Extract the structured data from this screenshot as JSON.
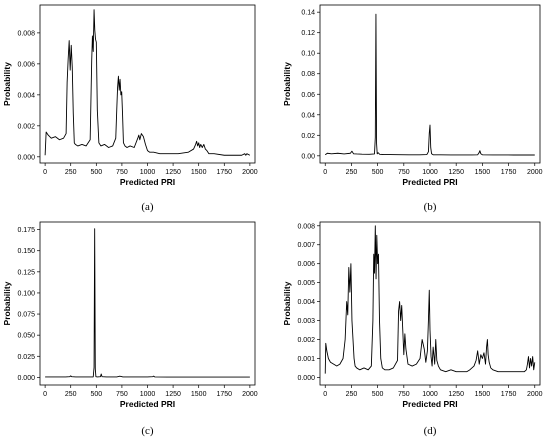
{
  "chart_data": [
    {
      "type": "line",
      "caption": "(a)",
      "xlabel": "Predicted PRI",
      "ylabel": "Probability",
      "xlim": [
        -50,
        2050
      ],
      "ylim": [
        -0.0004,
        0.0098
      ],
      "xticks": [
        0,
        250,
        500,
        750,
        1000,
        1250,
        1500,
        1750,
        2000
      ],
      "yticks": [
        0.0,
        0.002,
        0.004,
        0.006,
        0.008
      ],
      "ytick_labels": [
        "0.000",
        "0.002",
        "0.004",
        "0.006",
        "0.008"
      ],
      "grid": false,
      "series": [
        {
          "x": [
            0,
            10,
            30,
            60,
            100,
            140,
            180,
            205,
            215,
            225,
            235,
            245,
            255,
            265,
            275,
            285,
            295,
            320,
            360,
            400,
            440,
            455,
            462,
            470,
            478,
            485,
            492,
            500,
            510,
            525,
            545,
            580,
            620,
            660,
            690,
            700,
            708,
            716,
            724,
            732,
            740,
            748,
            756,
            765,
            780,
            800,
            830,
            870,
            905,
            915,
            925,
            940,
            960,
            980,
            1000,
            1020,
            1060,
            1120,
            1200,
            1300,
            1400,
            1450,
            1470,
            1480,
            1490,
            1500,
            1510,
            1520,
            1535,
            1550,
            1565,
            1580,
            1600,
            1650,
            1750,
            1850,
            1920,
            1950,
            1960,
            1970,
            2000
          ],
          "y": [
            0.0001,
            0.0016,
            0.0014,
            0.0012,
            0.0013,
            0.0011,
            0.0012,
            0.0015,
            0.0048,
            0.0063,
            0.0075,
            0.0056,
            0.0072,
            0.0058,
            0.0028,
            0.0009,
            0.0008,
            0.0007,
            0.0008,
            0.0007,
            0.0011,
            0.0062,
            0.0078,
            0.0068,
            0.0095,
            0.0082,
            0.0076,
            0.0074,
            0.003,
            0.0009,
            0.0007,
            0.0008,
            0.0006,
            0.0007,
            0.0012,
            0.0031,
            0.0045,
            0.0052,
            0.0043,
            0.005,
            0.004,
            0.0042,
            0.0028,
            0.0009,
            0.0007,
            0.0006,
            0.0007,
            0.0006,
            0.0012,
            0.0014,
            0.0011,
            0.0015,
            0.0013,
            0.0008,
            0.0004,
            0.0003,
            0.0003,
            0.0002,
            0.0002,
            0.0002,
            0.0003,
            0.0005,
            0.0008,
            0.001,
            0.0007,
            0.0009,
            0.0006,
            0.0008,
            0.0006,
            0.0008,
            0.0005,
            0.0004,
            0.0002,
            0.0002,
            0.0001,
            0.0001,
            0.0001,
            0.0002,
            0.0001,
            0.0002,
            0.0001
          ]
        }
      ]
    },
    {
      "type": "line",
      "caption": "(b)",
      "xlabel": "Predicted PRI",
      "ylabel": "Probability",
      "xlim": [
        -50,
        2050
      ],
      "ylim": [
        -0.007,
        0.147
      ],
      "xticks": [
        0,
        250,
        500,
        750,
        1000,
        1250,
        1500,
        1750,
        2000
      ],
      "yticks": [
        0.0,
        0.02,
        0.04,
        0.06,
        0.08,
        0.1,
        0.12,
        0.14
      ],
      "ytick_labels": [
        "0.00",
        "0.02",
        "0.04",
        "0.06",
        "0.08",
        "0.10",
        "0.12",
        "0.14"
      ],
      "grid": false,
      "series": [
        {
          "x": [
            0,
            20,
            60,
            120,
            180,
            240,
            255,
            270,
            300,
            350,
            420,
            470,
            478,
            484,
            490,
            496,
            505,
            520,
            560,
            620,
            700,
            800,
            900,
            970,
            985,
            993,
            1000,
            1007,
            1015,
            1030,
            1100,
            1200,
            1300,
            1400,
            1455,
            1468,
            1476,
            1485,
            1500,
            1600,
            1700,
            1800,
            1900,
            2000
          ],
          "y": [
            0.001,
            0.0025,
            0.002,
            0.0025,
            0.0018,
            0.0025,
            0.0045,
            0.002,
            0.0018,
            0.0016,
            0.0015,
            0.0018,
            0.018,
            0.138,
            0.012,
            0.002,
            0.003,
            0.0015,
            0.0012,
            0.0012,
            0.0011,
            0.001,
            0.001,
            0.0012,
            0.004,
            0.022,
            0.03,
            0.008,
            0.002,
            0.001,
            0.001,
            0.0009,
            0.0009,
            0.0009,
            0.001,
            0.003,
            0.005,
            0.002,
            0.001,
            0.0009,
            0.0009,
            0.0008,
            0.0008,
            0.0008
          ]
        }
      ]
    },
    {
      "type": "line",
      "caption": "(c)",
      "xlabel": "Predicted PRI",
      "ylabel": "Probability",
      "xlim": [
        -50,
        2050
      ],
      "ylim": [
        -0.009,
        0.184
      ],
      "xticks": [
        0,
        250,
        500,
        750,
        1000,
        1250,
        1500,
        1750,
        2000
      ],
      "yticks": [
        0.0,
        0.025,
        0.05,
        0.075,
        0.1,
        0.125,
        0.15,
        0.175
      ],
      "ytick_labels": [
        "0.000",
        "0.025",
        "0.050",
        "0.075",
        "0.100",
        "0.125",
        "0.150",
        "0.175"
      ],
      "grid": false,
      "series": [
        {
          "x": [
            0,
            100,
            200,
            240,
            250,
            260,
            300,
            400,
            470,
            478,
            484,
            490,
            496,
            510,
            540,
            548,
            556,
            600,
            700,
            730,
            760,
            800,
            900,
            1000,
            1050,
            1060,
            1070,
            1200,
            1400,
            1600,
            1800,
            2000
          ],
          "y": [
            0.0006,
            0.0005,
            0.0005,
            0.0008,
            0.0018,
            0.0008,
            0.0005,
            0.0005,
            0.0006,
            0.012,
            0.176,
            0.01,
            0.0008,
            0.0006,
            0.0008,
            0.004,
            0.0008,
            0.0005,
            0.0006,
            0.0015,
            0.0006,
            0.0005,
            0.0005,
            0.0006,
            0.0008,
            0.0015,
            0.0006,
            0.0004,
            0.0004,
            0.0004,
            0.0004,
            0.0004
          ]
        }
      ]
    },
    {
      "type": "line",
      "caption": "(d)",
      "xlabel": "Predicted PRI",
      "ylabel": "Probability",
      "xlim": [
        -50,
        2050
      ],
      "ylim": [
        -0.0004,
        0.0082
      ],
      "xticks": [
        0,
        250,
        500,
        750,
        1000,
        1250,
        1500,
        1750,
        2000
      ],
      "yticks": [
        0.0,
        0.001,
        0.002,
        0.003,
        0.004,
        0.005,
        0.006,
        0.007,
        0.008
      ],
      "ytick_labels": [
        "0.000",
        "0.001",
        "0.002",
        "0.003",
        "0.004",
        "0.005",
        "0.006",
        "0.007",
        "0.008"
      ],
      "grid": false,
      "series": [
        {
          "x": [
            0,
            5,
            15,
            30,
            50,
            80,
            110,
            140,
            170,
            190,
            205,
            215,
            225,
            235,
            245,
            255,
            265,
            275,
            285,
            300,
            330,
            370,
            410,
            440,
            455,
            463,
            470,
            478,
            485,
            492,
            500,
            508,
            518,
            530,
            545,
            570,
            610,
            650,
            690,
            700,
            710,
            720,
            730,
            740,
            750,
            760,
            770,
            790,
            830,
            870,
            905,
            925,
            945,
            960,
            975,
            985,
            993,
            1000,
            1010,
            1020,
            1030,
            1045,
            1055,
            1065,
            1080,
            1100,
            1150,
            1200,
            1250,
            1300,
            1350,
            1380,
            1420,
            1440,
            1455,
            1470,
            1485,
            1500,
            1515,
            1530,
            1540,
            1548,
            1555,
            1565,
            1580,
            1600,
            1650,
            1700,
            1750,
            1800,
            1850,
            1900,
            1920,
            1930,
            1940,
            1950,
            1960,
            1970,
            1980,
            1990,
            2000
          ],
          "y": [
            0.0002,
            0.0018,
            0.0014,
            0.001,
            0.0008,
            0.0007,
            0.0006,
            0.0007,
            0.001,
            0.002,
            0.004,
            0.0033,
            0.0058,
            0.0045,
            0.006,
            0.003,
            0.002,
            0.001,
            0.0006,
            0.0005,
            0.0004,
            0.0005,
            0.0004,
            0.0006,
            0.003,
            0.0065,
            0.0055,
            0.008,
            0.0052,
            0.0075,
            0.006,
            0.0065,
            0.003,
            0.001,
            0.0005,
            0.0004,
            0.0004,
            0.0005,
            0.0009,
            0.0035,
            0.004,
            0.003,
            0.0038,
            0.0025,
            0.0012,
            0.0023,
            0.0015,
            0.0007,
            0.0006,
            0.0007,
            0.001,
            0.002,
            0.0015,
            0.0008,
            0.0014,
            0.003,
            0.0046,
            0.0025,
            0.0011,
            0.0006,
            0.0016,
            0.0007,
            0.002,
            0.0009,
            0.0006,
            0.0004,
            0.0003,
            0.0004,
            0.0003,
            0.0003,
            0.0003,
            0.0004,
            0.0006,
            0.0009,
            0.0014,
            0.0007,
            0.0012,
            0.001,
            0.0013,
            0.0007,
            0.0016,
            0.002,
            0.0012,
            0.0008,
            0.0005,
            0.0004,
            0.0003,
            0.0003,
            0.0003,
            0.0003,
            0.0003,
            0.0003,
            0.0004,
            0.0007,
            0.0011,
            0.0005,
            0.001,
            0.0006,
            0.0011,
            0.0004,
            0.0008
          ]
        }
      ]
    }
  ]
}
